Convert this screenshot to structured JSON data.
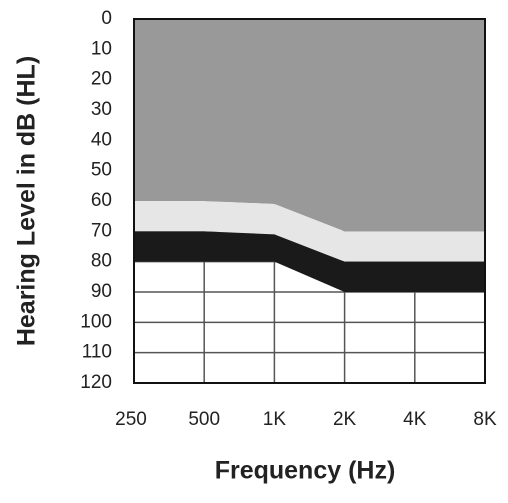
{
  "chart_data": {
    "type": "area",
    "xlabel": "Frequency (Hz)",
    "ylabel": "Hearing Level in dB (HL)",
    "categories": [
      "250",
      "500",
      "1K",
      "2K",
      "4K",
      "8K"
    ],
    "series": [
      {
        "color": "#999999",
        "values": [
          60,
          60,
          61,
          70,
          70,
          70
        ]
      },
      {
        "color": "#e6e6e6",
        "values": [
          70,
          70,
          71,
          80,
          80,
          80
        ]
      },
      {
        "color": "#1a1a1a",
        "values": [
          80,
          80,
          80,
          90,
          90,
          90
        ]
      }
    ],
    "ylim": [
      0,
      120
    ],
    "yticks": [
      0,
      10,
      20,
      30,
      40,
      50,
      60,
      70,
      80,
      90,
      100,
      110,
      120
    ],
    "y_inverted": true,
    "grid": true
  }
}
